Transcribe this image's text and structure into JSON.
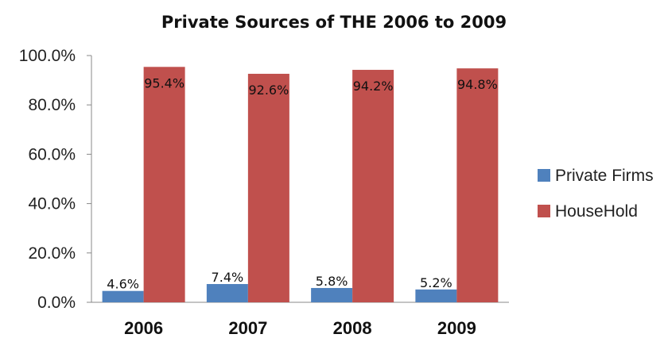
{
  "chart_data": {
    "type": "bar",
    "title": "Private Sources of THE 2006 to 2009",
    "categories": [
      "2006",
      "2007",
      "2008",
      "2009"
    ],
    "series": [
      {
        "name": "Private Firms",
        "values": [
          4.6,
          7.4,
          5.8,
          5.2
        ],
        "labels": [
          "4.6%",
          "7.4%",
          "5.8%",
          "5.2%"
        ],
        "color": "#4f81bd"
      },
      {
        "name": "HouseHold",
        "values": [
          95.4,
          92.6,
          94.2,
          94.8
        ],
        "labels": [
          "95.4%",
          "92.6%",
          "94.2%",
          "94.8%"
        ],
        "color": "#c0504d"
      }
    ],
    "ylim": [
      0,
      100
    ],
    "yticks": [
      0,
      20,
      40,
      60,
      80,
      100
    ],
    "ytick_labels": [
      "0.0%",
      "20.0%",
      "40.0%",
      "60.0%",
      "80.0%",
      "100.0%"
    ],
    "xlabel": "",
    "ylabel": "",
    "grid": false,
    "legend_position": "right"
  }
}
